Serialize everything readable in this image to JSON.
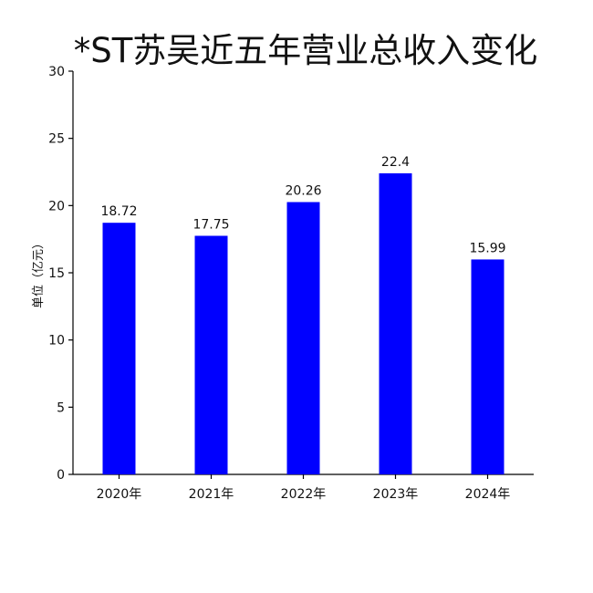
{
  "chart_data": {
    "type": "bar",
    "title": "*ST苏吴近五年营业总收入变化",
    "xlabel": "",
    "ylabel": "单位（亿元）",
    "categories": [
      "2020年",
      "2021年",
      "2022年",
      "2023年",
      "2024年"
    ],
    "values": [
      18.72,
      17.75,
      20.26,
      22.4,
      15.99
    ],
    "value_labels": [
      "18.72",
      "17.75",
      "20.26",
      "22.4",
      "15.99"
    ],
    "ylim": [
      0,
      30
    ],
    "yticks": [
      0,
      5,
      10,
      15,
      20,
      25,
      30
    ],
    "grid": false,
    "legend": "none",
    "bar_color": "#0000ff"
  }
}
